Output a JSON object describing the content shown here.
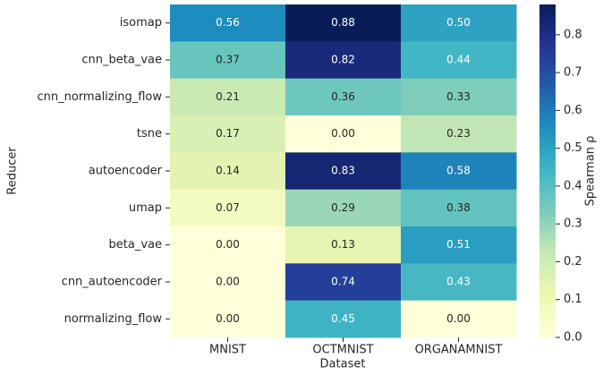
{
  "chart_data": {
    "type": "heatmap",
    "xlabel": "Dataset",
    "ylabel": "Reducer",
    "colorbar_label": "Spearman ρ",
    "x_categories": [
      "MNIST",
      "OCTMNIST",
      "ORGANAMNIST"
    ],
    "y_categories": [
      "isomap",
      "cnn_beta_vae",
      "cnn_normalizing_flow",
      "tsne",
      "autoencoder",
      "umap",
      "beta_vae",
      "cnn_autoencoder",
      "normalizing_flow"
    ],
    "values": [
      [
        0.56,
        0.88,
        0.5
      ],
      [
        0.37,
        0.82,
        0.44
      ],
      [
        0.21,
        0.36,
        0.33
      ],
      [
        0.17,
        0,
        0.23
      ],
      [
        0.14,
        0.83,
        0.58
      ],
      [
        0.07,
        0.29,
        0.38
      ],
      [
        0,
        0.13,
        0.51
      ],
      [
        0,
        0.74,
        0.43
      ],
      [
        0,
        0.45,
        0
      ]
    ],
    "value_labels": [
      [
        "0.56",
        "0.88",
        "0.50"
      ],
      [
        "0.37",
        "0.82",
        "0.44"
      ],
      [
        "0.21",
        "0.36",
        "0.33"
      ],
      [
        "0.17",
        "0.00",
        "0.23"
      ],
      [
        "0.14",
        "0.83",
        "0.58"
      ],
      [
        "0.07",
        "0.29",
        "0.38"
      ],
      [
        "0.00",
        "0.13",
        "0.51"
      ],
      [
        "0.00",
        "0.74",
        "0.43"
      ],
      [
        "0.00",
        "0.45",
        "0.00"
      ]
    ],
    "clim": [
      0,
      0.88
    ],
    "cticks": [
      {
        "value": 0,
        "label": "0.0"
      },
      0.1,
      0.2,
      0.3,
      0.4,
      0.5,
      0.6,
      0.7,
      0.8
    ],
    "colormap": [
      "#ffffd9",
      "#edf8b1",
      "#c7e9b4",
      "#7fcdbb",
      "#41b6c4",
      "#1d91c0",
      "#225ea8",
      "#253494",
      "#081d58"
    ]
  }
}
